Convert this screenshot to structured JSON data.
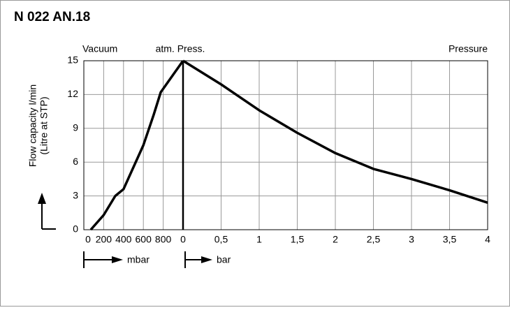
{
  "chart_data": {
    "type": "line",
    "title": "N 022 AN.18",
    "ylabel": [
      "Flow capacity l/min",
      "(Litre at STP)"
    ],
    "annotations": [
      "Vacuum",
      "atm. Press.",
      "Pressure"
    ],
    "ylim": [
      0,
      15
    ],
    "yticks": [
      0,
      3,
      6,
      9,
      12,
      15
    ],
    "grid": true,
    "color": "#000000",
    "segments": [
      {
        "name": "Vacuum",
        "xlabel": "mbar",
        "xlim": [
          0,
          1000
        ],
        "xticks": [
          0,
          200,
          400,
          600,
          800
        ],
        "x": [
          70,
          200,
          317,
          400,
          600,
          704,
          775,
          1000
        ],
        "values": [
          0,
          1.3,
          3,
          3.6,
          7.5,
          10.2,
          12.2,
          15
        ]
      },
      {
        "name": "Pressure",
        "xlabel": "bar",
        "xlim": [
          0,
          4
        ],
        "xticks": [
          0,
          {
            "value": 0.5,
            "label": "0,5"
          },
          1,
          {
            "value": 1.5,
            "label": "1,5"
          },
          2,
          {
            "value": 2.5,
            "label": "2,5"
          },
          3,
          {
            "value": 3.5,
            "label": "3,5"
          },
          4
        ],
        "x": [
          0,
          0.5,
          1,
          1.5,
          2,
          2.5,
          3,
          3.5,
          4
        ],
        "values": [
          15,
          12.9,
          10.6,
          8.6,
          6.8,
          5.4,
          4.5,
          3.5,
          2.4
        ]
      }
    ]
  }
}
